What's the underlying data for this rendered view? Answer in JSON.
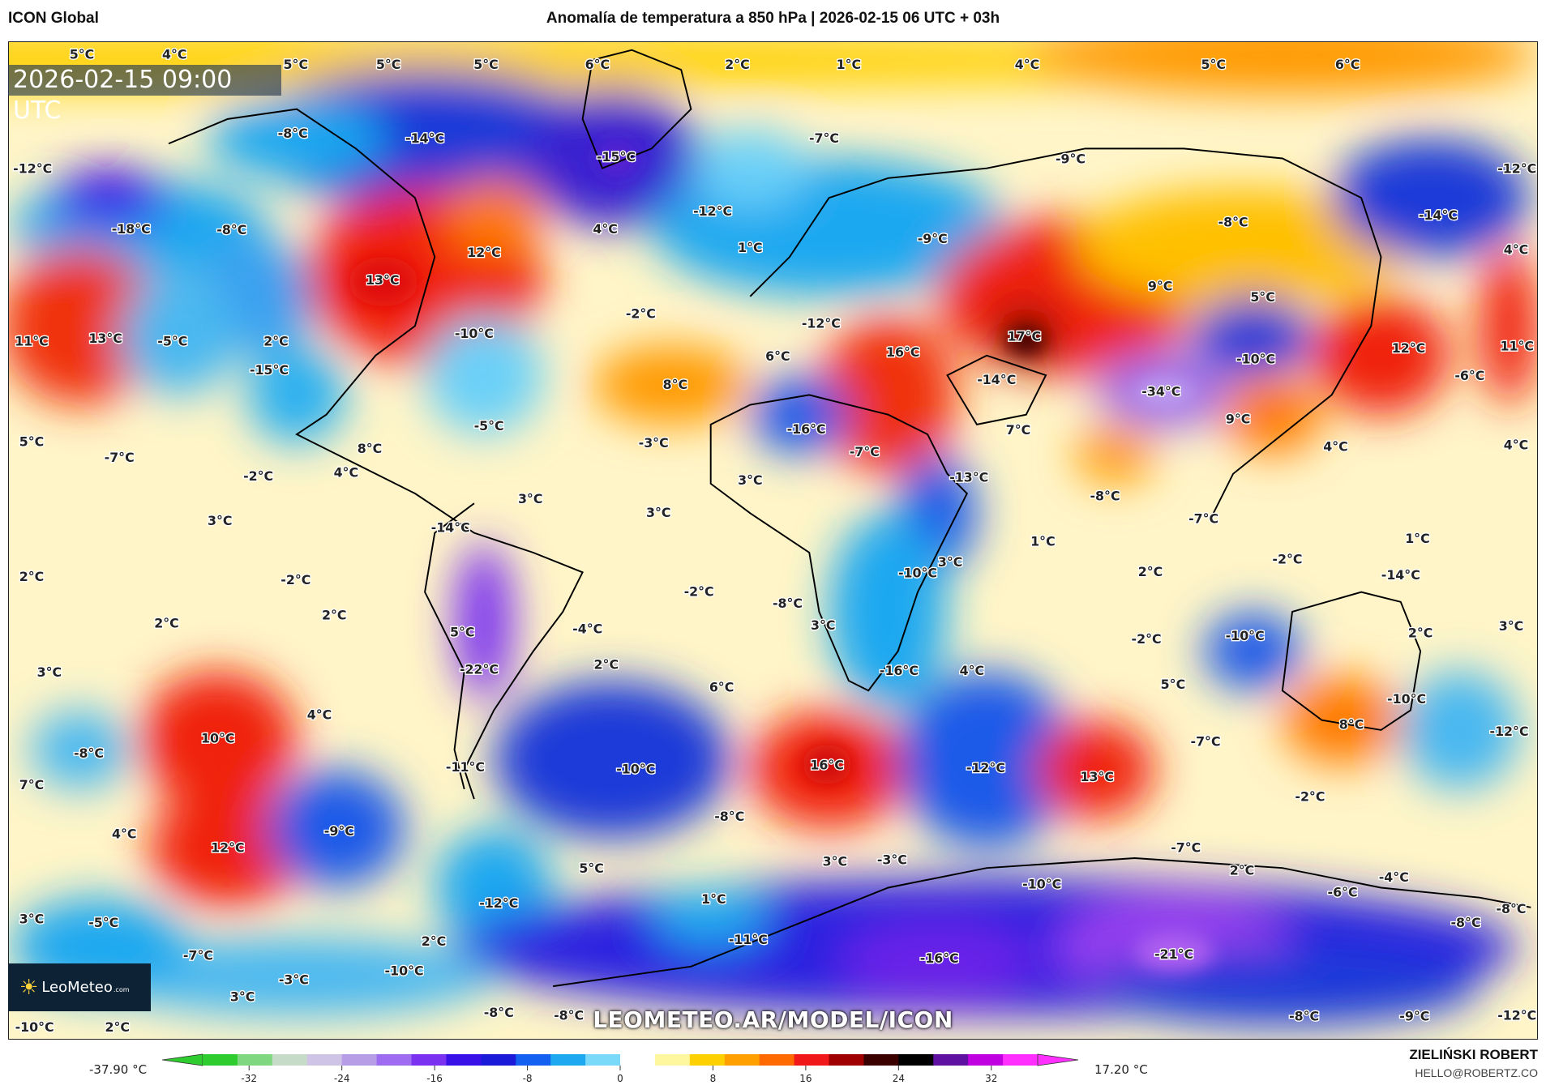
{
  "header": {
    "model": "ICON Global",
    "title": "Anomalía de temperatura a 850 hPa | 2026-02-15 06 UTC + 03h"
  },
  "map": {
    "valid_time": "2026-02-15 09:00 UTC",
    "watermark": "LEOMETEO.AR/MODEL/ICON",
    "logo": {
      "name": "LeoMeteo",
      "suffix": ".com"
    },
    "labels": [
      "5°C",
      "4°C",
      "5°C",
      "5°C",
      "5°C",
      "6°C",
      "2°C",
      "1°C",
      "4°C",
      "5°C",
      "6°C",
      "-8°C",
      "-14°C",
      "-15°C",
      "-7°C",
      "-9°C",
      "-12°C",
      "-12°C",
      "-18°C",
      "-8°C",
      "-12°C",
      "4°C",
      "-9°C",
      "-8°C",
      "-14°C",
      "4°C",
      "1°C",
      "13°C",
      "12°C",
      "9°C",
      "5°C",
      "11°C",
      "13°C",
      "-5°C",
      "2°C",
      "-10°C",
      "-2°C",
      "-12°C",
      "6°C",
      "16°C",
      "17°C",
      "-10°C",
      "12°C",
      "11°C",
      "-15°C",
      "8°C",
      "-14°C",
      "-34°C",
      "-6°C",
      "-5°C",
      "-16°C",
      "9°C",
      "7°C",
      "5°C",
      "-7°C",
      "-3°C",
      "-7°C",
      "4°C",
      "4°C",
      "8°C",
      "4°C",
      "-2°C",
      "3°C",
      "-13°C",
      "3°C",
      "-8°C",
      "3°C",
      "3°C",
      "-14°C",
      "-7°C",
      "1°C",
      "1°C",
      "2°C",
      "-2°C",
      "-10°C",
      "3°C",
      "2°C",
      "-2°C",
      "-14°C",
      "-2°C",
      "2°C",
      "2°C",
      "-8°C",
      "3°C",
      "-4°C",
      "5°C",
      "-2°C",
      "-10°C",
      "2°C",
      "3°C",
      "3°C",
      "-22°C",
      "2°C",
      "-16°C",
      "4°C",
      "5°C",
      "6°C",
      "4°C",
      "-10°C",
      "8°C",
      "-12°C",
      "-8°C",
      "10°C",
      "-7°C",
      "-11°C",
      "-10°C",
      "16°C",
      "-12°C",
      "13°C",
      "7°C",
      "-2°C",
      "-8°C",
      "4°C",
      "-9°C",
      "12°C",
      "-7°C",
      "3°C",
      "-3°C",
      "5°C",
      "2°C",
      "-4°C",
      "-10°C",
      "-6°C",
      "-12°C",
      "1°C",
      "-8°C",
      "-8°C",
      "3°C",
      "-5°C",
      "-11°C",
      "-16°C",
      "-21°C",
      "2°C",
      "-7°C",
      "-10°C",
      "-3°C",
      "3°C",
      "-10°C",
      "2°C",
      "-8°C",
      "-8°C",
      "-8°C",
      "-9°C",
      "-12°C"
    ]
  },
  "colorbar": {
    "min_label": "-37.90 °C",
    "max_label": "17.20 °C",
    "ticks": [
      "-32",
      "-24",
      "-16",
      "-8",
      "0",
      "8",
      "16",
      "24",
      "32"
    ],
    "range": [
      -36,
      36
    ],
    "colors": [
      "#2ecc2e",
      "#7fd87f",
      "#c7dcc8",
      "#cfc3e6",
      "#b79ce6",
      "#9d6cf0",
      "#7a32f0",
      "#3a10e8",
      "#1a1ad8",
      "#1460f0",
      "#1ea8f0",
      "#7ad8f8",
      "#ffffff",
      "#fff6a0",
      "#ffd000",
      "#ffa000",
      "#ff6a00",
      "#f01818",
      "#a00000",
      "#3a0000",
      "#000000",
      "#6010a0",
      "#c000e0",
      "#ff30ff"
    ]
  },
  "footer": {
    "author": "ZIELIŃSKI ROBERT",
    "email": "HELLO@ROBERTZ.CO"
  }
}
